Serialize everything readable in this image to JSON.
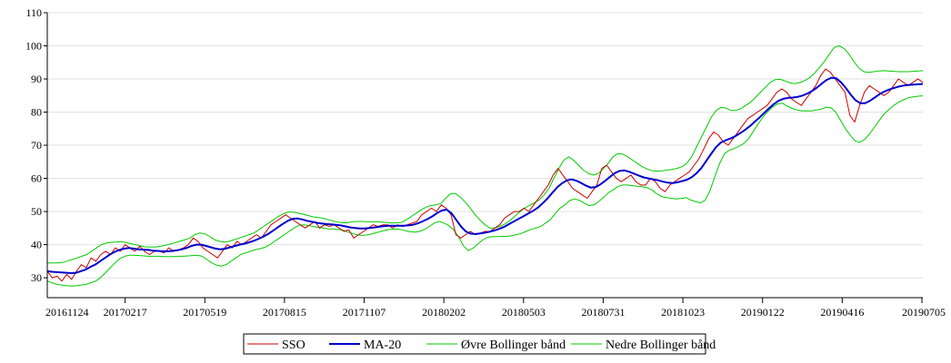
{
  "chart_data": {
    "type": "line",
    "title": "",
    "xlabel": "",
    "ylabel": "",
    "ylim": [
      24,
      110
    ],
    "yticks": [
      30,
      40,
      50,
      60,
      70,
      80,
      90,
      100,
      110
    ],
    "xtick_labels": [
      "20161124",
      "20170217",
      "20170519",
      "20170815",
      "20171107",
      "20180202",
      "20180503",
      "20180731",
      "20181023",
      "20190122",
      "20190416",
      "20190705"
    ],
    "grid": "horizontal",
    "legend_position": "bottom-center",
    "series": [
      {
        "name": "SSO",
        "color": "#cc0000",
        "values": [
          32,
          30,
          30.5,
          29,
          31,
          29.5,
          32,
          34,
          33,
          36,
          35,
          37,
          38,
          37,
          39,
          38,
          40,
          39,
          38,
          39.5,
          38,
          37,
          38,
          38,
          37.5,
          39,
          38,
          38.5,
          39,
          40,
          42,
          41,
          39,
          38,
          37,
          36,
          38,
          40,
          39,
          41,
          40,
          41,
          42,
          43,
          42,
          44,
          46,
          47,
          48,
          49,
          48,
          47,
          46,
          45,
          46,
          47,
          45,
          46,
          45.5,
          46,
          45,
          44,
          44.5,
          42,
          43,
          44,
          45,
          46,
          45.5,
          46,
          46,
          45,
          46,
          45.5,
          46,
          46.5,
          47,
          49,
          50,
          51,
          50,
          52,
          51,
          49,
          43,
          42,
          43,
          44,
          43,
          43.5,
          44,
          44,
          45,
          46,
          48,
          49,
          50,
          50,
          51,
          50,
          52,
          54,
          56,
          58,
          61,
          63,
          61,
          59,
          57,
          56,
          55,
          54,
          56,
          58,
          63,
          64,
          62,
          60,
          59,
          60,
          61,
          59,
          58,
          58,
          60,
          59,
          57,
          56,
          58,
          59,
          60,
          61,
          62,
          64,
          66,
          69,
          72,
          74,
          73,
          71,
          70,
          72,
          74,
          76,
          78,
          79,
          80,
          81,
          82,
          84,
          86,
          87,
          86,
          84,
          83,
          82,
          84,
          86,
          88,
          91,
          93,
          92,
          90,
          88,
          86,
          79,
          77,
          82,
          86,
          88,
          87,
          86,
          85,
          86,
          88,
          90,
          89,
          88,
          89,
          90,
          89
        ]
      },
      {
        "name": "MA-20",
        "color": "#0000cc",
        "values": [
          32,
          31.8,
          31.7,
          31.6,
          31.5,
          31.4,
          31.5,
          32,
          32.5,
          33.3,
          34,
          35,
          36,
          37,
          37.8,
          38.4,
          38.8,
          39,
          38.8,
          38.6,
          38.5,
          38.4,
          38.2,
          38.1,
          38,
          38,
          38.1,
          38.3,
          38.6,
          39,
          39.6,
          40,
          40,
          39.6,
          39.2,
          38.8,
          38.6,
          38.8,
          39.2,
          39.6,
          40,
          40.3,
          40.7,
          41.2,
          41.8,
          42.5,
          43.3,
          44.3,
          45.3,
          46.3,
          47.2,
          47.8,
          47.9,
          47.6,
          47.2,
          46.9,
          46.6,
          46.4,
          46.2,
          46.1,
          46,
          45.8,
          45.5,
          45.2,
          45,
          44.9,
          44.9,
          45,
          45.2,
          45.4,
          45.6,
          45.7,
          45.7,
          45.7,
          45.7,
          45.8,
          46,
          46.4,
          47,
          47.7,
          48.5,
          49.5,
          50.3,
          50.6,
          49.5,
          47.5,
          45.5,
          44,
          43.3,
          43.2,
          43.4,
          43.6,
          43.9,
          44.3,
          44.8,
          45.4,
          46.2,
          47,
          47.8,
          48.6,
          49.4,
          50.2,
          51.2,
          52.5,
          54,
          55.7,
          57.3,
          58.5,
          59.4,
          59.7,
          59.3,
          58.6,
          57.8,
          57.2,
          57.4,
          58.2,
          59.3,
          60.5,
          61.6,
          62.3,
          62.4,
          62,
          61.4,
          60.8,
          60.3,
          60,
          59.7,
          59.4,
          59,
          58.7,
          58.6,
          58.8,
          59.2,
          59.6,
          60.4,
          61.6,
          63.2,
          65.3,
          67.4,
          69.4,
          70.8,
          71.5,
          72,
          72.7,
          73.6,
          74.6,
          75.7,
          77,
          78.3,
          79.7,
          81.1,
          82.4,
          83.4,
          84,
          84.3,
          84.4,
          84.6,
          85,
          85.6,
          86.4,
          87.4,
          88.6,
          89.7,
          90.4,
          90.2,
          89,
          87.3,
          85.3,
          83.6,
          82.7,
          82.7,
          83.4,
          84.4,
          85.4,
          86.2,
          86.8,
          87.3,
          87.7,
          88,
          88.2,
          88.3,
          88.4,
          88.5
        ]
      },
      {
        "name": "Øvre Bollinger bånd",
        "color": "#00cc00",
        "values": [
          34.5,
          34.5,
          34.5,
          34.6,
          35,
          35.5,
          36,
          36.5,
          37,
          38,
          39,
          40,
          40.5,
          40.7,
          40.8,
          40.9,
          40.6,
          40.3,
          40,
          39.6,
          39.3,
          39.3,
          39.3,
          39.5,
          39.8,
          40.2,
          40.6,
          41,
          41.5,
          42,
          43,
          43.5,
          43.3,
          42.5,
          41.5,
          41,
          40.8,
          41,
          41.5,
          42,
          42.5,
          43,
          43.5,
          44.5,
          45.5,
          46.5,
          47.5,
          48.5,
          49.3,
          49.8,
          49.8,
          49.5,
          49.2,
          48.8,
          48.4,
          48.2,
          48,
          47.6,
          47.2,
          46.8,
          46.6,
          46.6,
          46.9,
          47,
          47,
          46.9,
          46.9,
          46.9,
          46.8,
          46.7,
          46.5,
          46.6,
          46.7,
          47.5,
          48.5,
          49.5,
          50.5,
          51.3,
          51.8,
          52,
          52.4,
          54,
          55.4,
          55.4,
          54.3,
          52.8,
          51,
          49,
          47.4,
          46,
          45,
          45,
          45.5,
          46.2,
          47.2,
          48.5,
          49.8,
          51,
          51.8,
          52.6,
          53.5,
          55,
          57,
          60,
          63,
          65.5,
          66.5,
          65.5,
          64,
          62.5,
          61.5,
          61,
          61.5,
          62.8,
          64.5,
          66.5,
          67.5,
          67.3,
          66.5,
          65.5,
          64.5,
          63.5,
          62.8,
          62.3,
          62.2,
          62.3,
          62.5,
          62.7,
          63,
          63.5,
          64.5,
          66.5,
          69.5,
          72.5,
          75.5,
          78.5,
          80.5,
          81.5,
          81.2,
          80.5,
          80.5,
          81,
          82,
          83,
          84.5,
          86,
          87.5,
          89,
          89.8,
          89.9,
          89.4,
          88.8,
          88.6,
          88.9,
          89.5,
          90.4,
          91.8,
          93.5,
          95.3,
          97.5,
          99.5,
          100,
          99.2,
          97.5,
          95.2,
          93.3,
          92.2,
          92,
          92.2,
          92.4,
          92.5,
          92.4,
          92.3,
          92.2,
          92.2,
          92.2,
          92.3,
          92.4,
          92.5
        ]
      },
      {
        "name": "Nedre Bollinger bånd",
        "color": "#00cc00",
        "values": [
          29,
          28.5,
          28,
          27.8,
          27.6,
          27.5,
          27.6,
          27.8,
          28,
          28.5,
          29,
          30,
          31.5,
          33,
          34.5,
          35.8,
          36.5,
          36.8,
          36.8,
          36.7,
          36.6,
          36.5,
          36.5,
          36.5,
          36.4,
          36.4,
          36.4,
          36.5,
          36.5,
          36.6,
          36.7,
          36.8,
          36.5,
          35.5,
          34.5,
          33.8,
          33.5,
          34,
          35,
          36,
          37,
          37.5,
          38,
          38.5,
          38.8,
          39.2,
          40,
          41,
          42,
          43,
          44,
          45,
          45.8,
          46,
          45.8,
          45.5,
          45.2,
          45,
          44.8,
          44.7,
          44.6,
          44.4,
          43.9,
          43.4,
          43,
          42.8,
          42.9,
          43.2,
          43.6,
          44,
          44.4,
          44.6,
          44.7,
          44.6,
          44.2,
          43.9,
          43.8,
          44,
          44.6,
          45.5,
          46.5,
          47,
          46.5,
          45.8,
          44.5,
          42.5,
          39.7,
          38.2,
          38.9,
          40.2,
          41.4,
          42.2,
          42.4,
          42.4,
          42.5,
          42.5,
          42.7,
          43,
          43.4,
          44,
          44.6,
          45,
          45.5,
          46.5,
          47.5,
          49.4,
          51,
          52,
          53.3,
          53.8,
          53.4,
          52.5,
          51.8,
          52,
          53,
          54.3,
          55.7,
          56.5,
          57.6,
          58,
          58,
          57.8,
          57.6,
          57.5,
          57.2,
          56.5,
          55.4,
          54.5,
          54.2,
          54,
          53.8,
          53.9,
          54.2,
          53.5,
          53,
          52.6,
          53.4,
          56.3,
          60.5,
          64.5,
          67.5,
          68.5,
          69,
          69.7,
          70.5,
          72,
          74.3,
          76.5,
          78.6,
          80.2,
          81.6,
          82.5,
          82.7,
          81.8,
          81.1,
          80.6,
          80.4,
          80.4,
          80.4,
          80.6,
          80.9,
          81.5,
          81.3,
          80,
          77.5,
          75,
          73,
          71.3,
          70.9,
          71.8,
          73.4,
          75.5,
          77.5,
          79.4,
          80.8,
          82,
          83,
          83.7,
          84.3,
          84.6,
          84.8,
          84.9
        ]
      }
    ]
  }
}
